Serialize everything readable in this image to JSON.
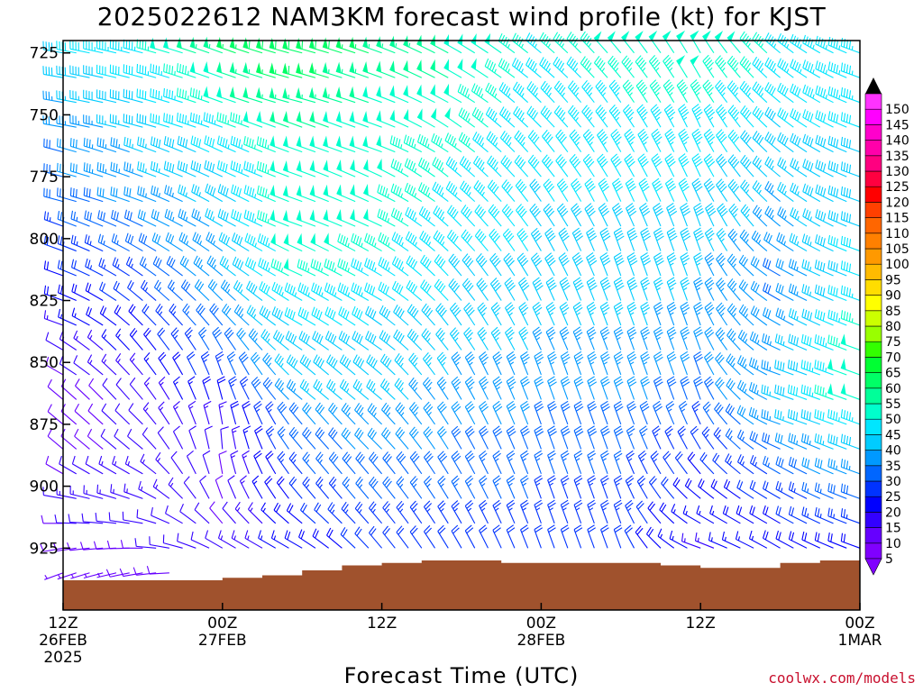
{
  "title": "2025022612 NAM3KM forecast wind profile (kt) for KJST",
  "credit": "coolwx.com/models",
  "chart_data": {
    "type": "wind-barb-profile",
    "title": "2025022612 NAM3KM forecast wind profile (kt) for KJST",
    "xlabel": "Forecast Time (UTC)",
    "ylabel": "",
    "y_ticks": [
      725,
      750,
      775,
      800,
      825,
      850,
      875,
      900,
      925
    ],
    "ylim": [
      950,
      720
    ],
    "xlim_hours": [
      0,
      60
    ],
    "x_ticks": [
      {
        "hour": 0,
        "lines": [
          "12Z",
          "26FEB",
          "2025"
        ]
      },
      {
        "hour": 12,
        "lines": [
          "00Z",
          "27FEB"
        ]
      },
      {
        "hour": 24,
        "lines": [
          "12Z"
        ]
      },
      {
        "hour": 36,
        "lines": [
          "00Z",
          "28FEB"
        ]
      },
      {
        "hour": 48,
        "lines": [
          "12Z"
        ]
      },
      {
        "hour": 60,
        "lines": [
          "00Z",
          "1MAR"
        ]
      }
    ],
    "legend": {
      "placement": "right",
      "levels": [
        5,
        10,
        15,
        20,
        25,
        30,
        35,
        40,
        45,
        50,
        55,
        60,
        65,
        70,
        75,
        80,
        85,
        90,
        95,
        100,
        105,
        110,
        115,
        120,
        125,
        130,
        135,
        140,
        145,
        150
      ],
      "colors": [
        "#8000ff",
        "#6600ff",
        "#3300ff",
        "#0000ff",
        "#0033ff",
        "#0066ff",
        "#0099ff",
        "#00ccff",
        "#00e6ff",
        "#00ffcc",
        "#00ff99",
        "#00ff66",
        "#00ff33",
        "#33ff00",
        "#99ff00",
        "#ccff00",
        "#ffff00",
        "#ffdd00",
        "#ffbb00",
        "#ff9900",
        "#ff8000",
        "#ff6600",
        "#ff4000",
        "#ff0000",
        "#ff0040",
        "#ff0080",
        "#ff00aa",
        "#ff00cc",
        "#ff00ff",
        "#ff33ff"
      ]
    },
    "terrain": {
      "color": "#a0522d",
      "surface_pressure": [
        {
          "hour": 0,
          "p": 938
        },
        {
          "hour": 8,
          "p": 938
        },
        {
          "hour": 12,
          "p": 937
        },
        {
          "hour": 15,
          "p": 936
        },
        {
          "hour": 18,
          "p": 934
        },
        {
          "hour": 21,
          "p": 932
        },
        {
          "hour": 24,
          "p": 931
        },
        {
          "hour": 27,
          "p": 930
        },
        {
          "hour": 30,
          "p": 930
        },
        {
          "hour": 33,
          "p": 931
        },
        {
          "hour": 36,
          "p": 931
        },
        {
          "hour": 39,
          "p": 931
        },
        {
          "hour": 42,
          "p": 931
        },
        {
          "hour": 45,
          "p": 932
        },
        {
          "hour": 48,
          "p": 933
        },
        {
          "hour": 51,
          "p": 933
        },
        {
          "hour": 54,
          "p": 931
        },
        {
          "hour": 57,
          "p": 930
        },
        {
          "hour": 60,
          "p": 929
        }
      ]
    },
    "wind": {
      "x_step_hours": 1,
      "levels": [
        725,
        735,
        745,
        755,
        765,
        775,
        785,
        795,
        805,
        815,
        825,
        835,
        845,
        855,
        865,
        875,
        885,
        895,
        905,
        915,
        925,
        935
      ],
      "keyframes": [
        {
          "hour": 0,
          "dir": [
            280,
            280,
            280,
            280,
            285,
            285,
            285,
            290,
            290,
            290,
            290,
            290,
            300,
            300,
            310,
            310,
            310,
            300,
            280,
            270,
            260,
            250
          ],
          "spd": [
            40,
            38,
            35,
            32,
            30,
            30,
            28,
            25,
            22,
            20,
            18,
            15,
            12,
            10,
            8,
            8,
            8,
            10,
            12,
            10,
            8,
            6
          ]
        },
        {
          "hour": 6,
          "dir": [
            285,
            285,
            285,
            285,
            290,
            290,
            290,
            295,
            300,
            305,
            310,
            315,
            320,
            320,
            320,
            315,
            310,
            300,
            290,
            280,
            270,
            260
          ],
          "spd": [
            45,
            42,
            40,
            38,
            36,
            35,
            32,
            30,
            28,
            25,
            22,
            20,
            18,
            15,
            12,
            12,
            12,
            14,
            15,
            12,
            10,
            8
          ]
        },
        {
          "hour": 12,
          "dir": [
            290,
            290,
            290,
            290,
            295,
            295,
            300,
            300,
            305,
            310,
            315,
            320,
            330,
            340,
            345,
            350,
            355,
            350,
            340,
            320,
            300,
            280
          ],
          "spd": [
            55,
            50,
            48,
            45,
            42,
            40,
            38,
            36,
            35,
            35,
            32,
            30,
            28,
            25,
            20,
            15,
            12,
            10,
            10,
            10,
            12,
            10
          ]
        },
        {
          "hour": 18,
          "dir": [
            285,
            285,
            285,
            290,
            290,
            290,
            290,
            290,
            295,
            295,
            300,
            300,
            305,
            310,
            310,
            320,
            320,
            320,
            320,
            310,
            300,
            290
          ],
          "spd": [
            60,
            58,
            55,
            52,
            50,
            50,
            50,
            50,
            50,
            48,
            45,
            42,
            40,
            38,
            35,
            30,
            28,
            25,
            22,
            20,
            18,
            15
          ]
        },
        {
          "hour": 24,
          "dir": [
            290,
            290,
            290,
            290,
            290,
            295,
            295,
            295,
            300,
            300,
            300,
            305,
            305,
            310,
            310,
            315,
            315,
            320,
            320,
            320,
            320,
            320
          ],
          "spd": [
            55,
            52,
            50,
            48,
            48,
            48,
            48,
            48,
            46,
            44,
            42,
            40,
            40,
            38,
            36,
            34,
            32,
            30,
            28,
            25,
            22,
            20
          ]
        },
        {
          "hour": 30,
          "dir": [
            300,
            300,
            300,
            305,
            305,
            310,
            310,
            315,
            315,
            320,
            320,
            325,
            325,
            330,
            330,
            330,
            330,
            330,
            330,
            330,
            330,
            330
          ],
          "spd": [
            50,
            50,
            48,
            48,
            46,
            45,
            44,
            42,
            42,
            40,
            40,
            38,
            36,
            35,
            34,
            32,
            30,
            28,
            26,
            24,
            22,
            20
          ]
        },
        {
          "hour": 36,
          "dir": [
            310,
            310,
            315,
            315,
            320,
            320,
            325,
            325,
            330,
            330,
            335,
            335,
            335,
            340,
            340,
            340,
            340,
            340,
            340,
            340,
            340,
            340
          ],
          "spd": [
            45,
            44,
            43,
            42,
            42,
            41,
            40,
            40,
            40,
            40,
            38,
            36,
            35,
            34,
            32,
            30,
            28,
            26,
            25,
            24,
            22,
            20
          ]
        },
        {
          "hour": 42,
          "dir": [
            320,
            320,
            325,
            325,
            330,
            330,
            335,
            335,
            340,
            340,
            340,
            340,
            340,
            340,
            340,
            340,
            340,
            340,
            340,
            340,
            340,
            340
          ],
          "spd": [
            48,
            46,
            45,
            44,
            43,
            42,
            41,
            40,
            40,
            40,
            38,
            36,
            35,
            34,
            32,
            30,
            28,
            26,
            25,
            24,
            22,
            20
          ]
        },
        {
          "hour": 48,
          "dir": [
            330,
            330,
            330,
            335,
            335,
            335,
            335,
            340,
            340,
            340,
            340,
            340,
            340,
            340,
            340,
            335,
            330,
            320,
            310,
            300,
            290,
            280
          ],
          "spd": [
            50,
            48,
            46,
            45,
            44,
            42,
            40,
            40,
            38,
            36,
            35,
            34,
            32,
            30,
            28,
            25,
            22,
            20,
            18,
            16,
            14,
            12
          ]
        },
        {
          "hour": 54,
          "dir": [
            310,
            310,
            310,
            310,
            310,
            310,
            310,
            310,
            305,
            300,
            300,
            300,
            295,
            290,
            290,
            290,
            295,
            300,
            300,
            300,
            300,
            300
          ],
          "spd": [
            45,
            44,
            42,
            40,
            38,
            36,
            35,
            34,
            32,
            30,
            30,
            32,
            34,
            35,
            36,
            34,
            30,
            26,
            22,
            20,
            18,
            15
          ]
        },
        {
          "hour": 60,
          "dir": [
            290,
            290,
            290,
            290,
            290,
            290,
            290,
            290,
            290,
            290,
            290,
            290,
            290,
            290,
            290,
            290,
            290,
            290,
            290,
            290,
            290,
            290
          ],
          "spd": [
            45,
            44,
            43,
            42,
            40,
            40,
            40,
            40,
            42,
            42,
            44,
            46,
            48,
            50,
            50,
            45,
            40,
            35,
            30,
            25,
            20,
            15
          ]
        }
      ]
    }
  }
}
